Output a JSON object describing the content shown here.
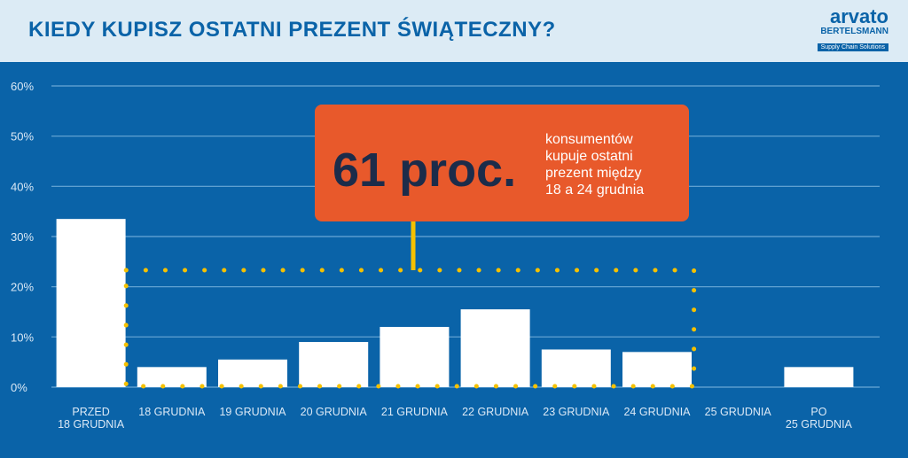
{
  "header": {
    "title": "KIEDY KUPISZ OSTATNI PREZENT ŚWIĄTECZNY?",
    "logo_main": "arvato",
    "logo_sub": "BERTELSMANN",
    "logo_tag": "Supply Chain Solutions"
  },
  "callout": {
    "big_text": "61 proc.",
    "desc_lines": [
      "konsumentów",
      "kupuje ostatni",
      "prezent między",
      "18 a 24 grudnia"
    ]
  },
  "colors": {
    "background": "#0a63a8",
    "bar": "#ffffff",
    "callout": "#e8592b",
    "highlight": "#f5c100"
  },
  "chart_data": {
    "type": "bar",
    "title": "KIEDY KUPISZ OSTATNI PREZENT ŚWIĄTECZNY?",
    "categories": [
      [
        "PRZED",
        "18 GRUDNIA"
      ],
      [
        "18 GRUDNIA"
      ],
      [
        "19 GRUDNIA"
      ],
      [
        "20 GRUDNIA"
      ],
      [
        "21 GRUDNIA"
      ],
      [
        "22 GRUDNIA"
      ],
      [
        "23 GRUDNIA"
      ],
      [
        "24 GRUDNIA"
      ],
      [
        "25 GRUDNIA"
      ],
      [
        "PO",
        "25 GRUDNIA"
      ]
    ],
    "values": [
      33.5,
      4,
      5.5,
      9,
      12,
      15.5,
      7.5,
      7,
      0,
      4
    ],
    "ylim": [
      0,
      60
    ],
    "yticks": [
      "0%",
      "10%",
      "20%",
      "30%",
      "40%",
      "50%",
      "60%"
    ],
    "grid": true,
    "highlight_range": [
      1,
      7
    ]
  }
}
